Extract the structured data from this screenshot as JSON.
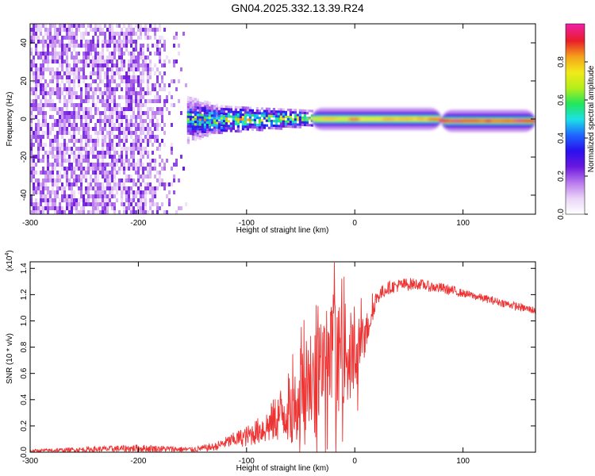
{
  "title": "GN04.2025.332.13.39.R24",
  "colors": {
    "snr_line": "#ee3333",
    "colormap": [
      "#ffffff",
      "#e9d3f7",
      "#b877ee",
      "#6a18dd",
      "#2a10ee",
      "#1e66ff",
      "#1ce0e8",
      "#22e65a",
      "#b6ee1a",
      "#f2ea1a",
      "#f5a01a",
      "#e81e2a",
      "#f01ea0"
    ]
  },
  "chart_data": [
    {
      "type": "heatmap",
      "xlabel": "Height of straight line (km)",
      "ylabel": "Frequency (Hz)",
      "xlim": [
        -300,
        167
      ],
      "ylim": [
        -50,
        50
      ],
      "x_ticks": [
        -300,
        -200,
        -100,
        0,
        100
      ],
      "x_tick_labels": [
        "-300",
        "-200",
        "-100",
        "0",
        "100"
      ],
      "y_ticks": [
        -40,
        -20,
        0,
        20,
        40
      ],
      "y_tick_labels": [
        "-40",
        "-20",
        "0",
        "20",
        "40"
      ],
      "colorbar": {
        "label": "Normalized spectral amplitude",
        "range": [
          0,
          1
        ],
        "ticks": [
          0.0,
          0.2,
          0.4,
          0.6,
          0.8
        ],
        "tick_labels": [
          "0.0",
          "0.2",
          "0.4",
          "0.6",
          "0.8"
        ]
      },
      "regions": [
        {
          "x_range": [
            -300,
            -155
          ],
          "freq_range": [
            -50,
            50
          ],
          "amplitude": 0.15,
          "pattern": "noise"
        },
        {
          "x_range": [
            -155,
            -120
          ],
          "freq_range": [
            -12,
            12
          ],
          "amplitude": 0.25,
          "pattern": "diffuse"
        },
        {
          "x_range": [
            -155,
            -40
          ],
          "freq_range": [
            -8,
            8
          ],
          "amplitude": 0.45,
          "pattern": "band"
        },
        {
          "x_range": [
            -40,
            80
          ],
          "freq_range": [
            -2,
            2
          ],
          "amplitude": 0.75,
          "pattern": "line",
          "center_freq": 0
        },
        {
          "x_range": [
            80,
            167
          ],
          "freq_range": [
            -3,
            3
          ],
          "amplitude": 0.85,
          "pattern": "line",
          "center_freq": -1
        }
      ]
    },
    {
      "type": "line",
      "xlabel": "Height of straight line (km)",
      "ylabel": "SNR (10 * v/v)",
      "y_multiplier": "(x10",
      "y_multiplier_exp": "4",
      "y_multiplier_close": ")",
      "xlim": [
        -300,
        167
      ],
      "ylim": [
        0,
        1.45
      ],
      "x_ticks": [
        -300,
        -200,
        -100,
        0,
        100
      ],
      "x_tick_labels": [
        "-300",
        "-200",
        "-100",
        "0",
        "100"
      ],
      "y_ticks": [
        0.0,
        0.2,
        0.4,
        0.6,
        0.8,
        1.0,
        1.2,
        1.4
      ],
      "y_tick_labels": [
        "0.0",
        "0.2",
        "0.4",
        "0.6",
        "0.8",
        "1.0",
        "1.2",
        "1.4"
      ],
      "series": [
        {
          "x": [
            -300,
            -250,
            -200,
            -150,
            -130,
            -110,
            -100,
            -90,
            -80,
            -70,
            -60,
            -50,
            -40,
            -30,
            -20,
            -10,
            0,
            10,
            20,
            30,
            40,
            50,
            60,
            70,
            80,
            90,
            100,
            110,
            120,
            130,
            140,
            150,
            160,
            167
          ],
          "y": [
            0.01,
            0.02,
            0.03,
            0.02,
            0.04,
            0.1,
            0.12,
            0.16,
            0.2,
            0.28,
            0.35,
            0.45,
            0.55,
            0.62,
            0.7,
            0.75,
            0.72,
            0.9,
            1.18,
            1.25,
            1.27,
            1.28,
            1.28,
            1.26,
            1.25,
            1.23,
            1.21,
            1.19,
            1.17,
            1.15,
            1.13,
            1.11,
            1.09,
            1.08
          ],
          "spread": [
            0.01,
            0.02,
            0.03,
            0.02,
            0.03,
            0.06,
            0.08,
            0.1,
            0.14,
            0.2,
            0.28,
            0.35,
            0.4,
            0.45,
            0.45,
            0.4,
            0.3,
            0.15,
            0.06,
            0.05,
            0.05,
            0.05,
            0.04,
            0.04,
            0.04,
            0.04,
            0.03,
            0.03,
            0.03,
            0.03,
            0.03,
            0.03,
            0.03,
            0.03
          ]
        }
      ]
    }
  ]
}
